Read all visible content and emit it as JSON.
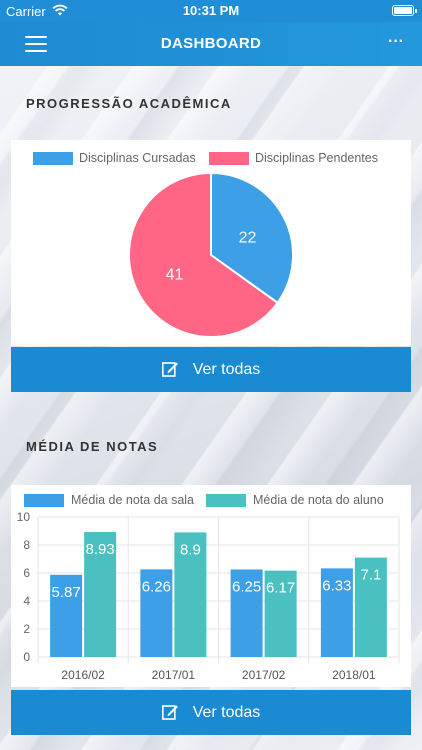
{
  "status": {
    "carrier": "Carrier",
    "time": "10:31 PM"
  },
  "nav": {
    "title": "DASHBOARD",
    "more": "···"
  },
  "progress": {
    "title": "PROGRESSÃO ACADÊMICA",
    "button": "Ver todas",
    "chart_legend": [
      "Disciplinas Cursadas",
      "Disciplinas Pendentes"
    ]
  },
  "grades": {
    "title": "MÉDIA DE NOTAS",
    "button": "Ver todas",
    "chart_legend": [
      "Média de nota da sala",
      "Média de nota do aluno"
    ]
  },
  "colors": {
    "blue": "#3da0e6",
    "pink": "#ff6584",
    "teal": "#4bc0c0",
    "accent": "#1a8bd3"
  },
  "chart_data": [
    {
      "type": "pie",
      "labels": [
        "Disciplinas Cursadas",
        "Disciplinas Pendentes"
      ],
      "values": [
        22,
        41
      ],
      "colors": [
        "#3da0e6",
        "#ff6584"
      ],
      "legend": "top"
    },
    {
      "type": "bar",
      "categories": [
        "2016/02",
        "2017/01",
        "2017/02",
        "2018/01"
      ],
      "series": [
        {
          "name": "Média de nota da sala",
          "values": [
            5.87,
            6.26,
            6.25,
            6.33
          ],
          "color": "#3da0e6"
        },
        {
          "name": "Média de nota do aluno",
          "values": [
            8.93,
            8.9,
            6.17,
            7.1
          ],
          "color": "#4bc0c0"
        }
      ],
      "ylim": [
        0,
        10
      ],
      "yticks": [
        0,
        2,
        4,
        6,
        8,
        10
      ],
      "grid": true,
      "legend": "top"
    }
  ]
}
